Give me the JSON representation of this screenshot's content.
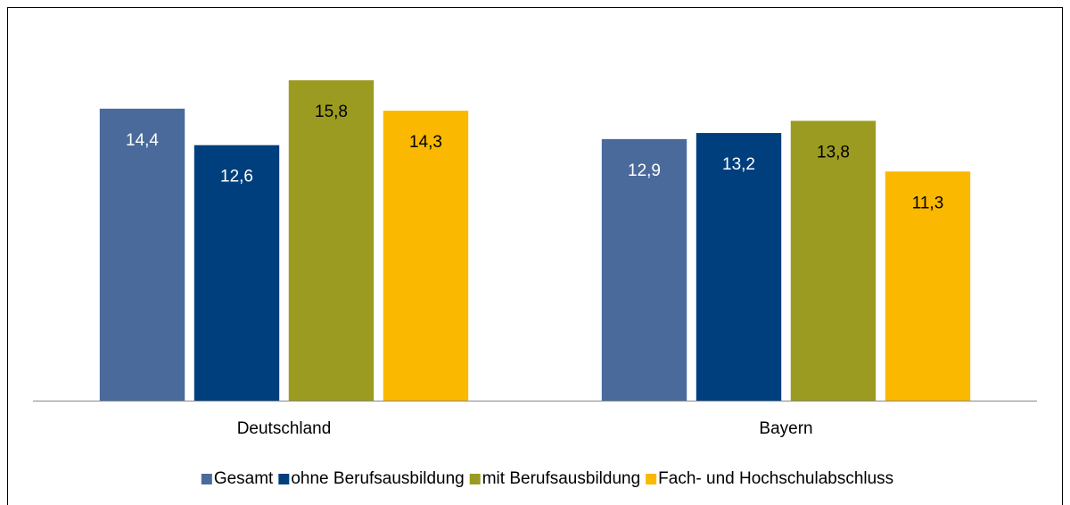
{
  "chart_data": {
    "type": "bar",
    "categories": [
      "Deutschland",
      "Bayern"
    ],
    "series": [
      {
        "name": "Gesamt",
        "color": "#4a6a9c",
        "label_color": "#ffffff",
        "values": [
          14.4,
          12.9
        ],
        "value_labels": [
          "14,4",
          "12,9"
        ]
      },
      {
        "name": "ohne Berufsausbildung",
        "color": "#003f7d",
        "label_color": "#ffffff",
        "values": [
          12.6,
          13.2
        ],
        "value_labels": [
          "12,6",
          "13,2"
        ]
      },
      {
        "name": "mit Berufsausbildung",
        "color": "#9b9b21",
        "label_color": "#000000",
        "values": [
          15.8,
          13.8
        ],
        "value_labels": [
          "15,8",
          "13,8"
        ]
      },
      {
        "name": "Fach- und Hochschulabschluss",
        "color": "#fbb800",
        "label_color": "#000000",
        "values": [
          14.3,
          11.3
        ],
        "value_labels": [
          "14,3",
          "11,3"
        ]
      }
    ],
    "ylim": [
      0,
      18
    ],
    "legend": "bottom"
  }
}
